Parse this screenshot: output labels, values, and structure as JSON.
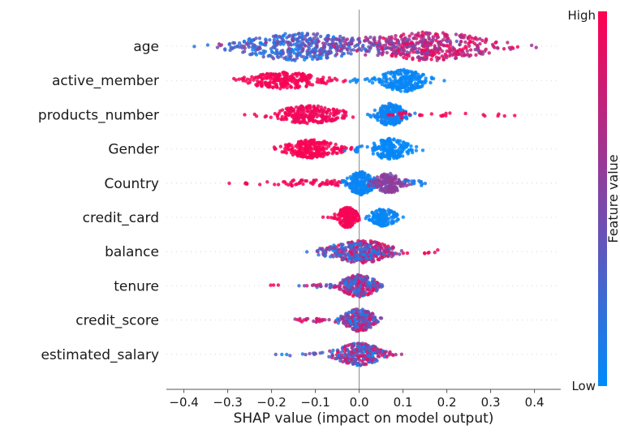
{
  "chart_data": {
    "type": "scatter",
    "variant": "shap-beeswarm-summary",
    "title": "",
    "xlabel": "SHAP value (impact on model output)",
    "xlim": [
      -0.44,
      0.46
    ],
    "xticks": [
      {
        "value": -0.4,
        "label": "−0.4"
      },
      {
        "value": -0.3,
        "label": "−0.3"
      },
      {
        "value": -0.2,
        "label": "−0.2"
      },
      {
        "value": -0.1,
        "label": "−0.1"
      },
      {
        "value": 0.0,
        "label": "0.0"
      },
      {
        "value": 0.1,
        "label": "0.1"
      },
      {
        "value": 0.2,
        "label": "0.2"
      },
      {
        "value": 0.3,
        "label": "0.3"
      },
      {
        "value": 0.4,
        "label": "0.4"
      }
    ],
    "features": [
      "age",
      "active_member",
      "products_number",
      "Gender",
      "Country",
      "credit_card",
      "balance",
      "tenure",
      "credit_score",
      "estimated_salary"
    ],
    "zero_line": {
      "x": 0,
      "color": "#999999"
    },
    "gridline_color": "#cccccc",
    "axis_color": "#555555",
    "colorbar": {
      "label": "Feature value",
      "high_label": "High",
      "low_label": "Low",
      "high_color": "#ff0051",
      "low_color": "#008bfb"
    },
    "clusters": {
      "age": [
        {
          "t": "violin",
          "x": -0.135,
          "sd": 0.08,
          "n": 340,
          "h": 17,
          "v": [
            0.02,
            0.45
          ]
        },
        {
          "t": "violin",
          "x": 0.16,
          "sd": 0.08,
          "n": 340,
          "h": 17,
          "v": [
            0.58,
            1.0
          ]
        },
        {
          "t": "violin",
          "x": 0.01,
          "sd": 0.14,
          "n": 150,
          "h": 11,
          "v": [
            0.35,
            0.72
          ]
        },
        {
          "t": "strip",
          "x": 0.355,
          "sd": 0.008,
          "n": 2,
          "h": 2,
          "v": [
            0.9,
            1.0
          ]
        },
        {
          "t": "strip",
          "x": -0.375,
          "sd": 0.004,
          "n": 1,
          "h": 1,
          "v": [
            0.05,
            0.15
          ]
        }
      ],
      "active_member": [
        {
          "t": "violin",
          "x": -0.17,
          "sd": 0.047,
          "n": 240,
          "h": 9.5,
          "v": [
            0.93,
            1.0
          ]
        },
        {
          "t": "violin",
          "x": 0.1,
          "sd": 0.029,
          "n": 240,
          "h": 13,
          "v": [
            0.0,
            0.06
          ]
        },
        {
          "t": "strip",
          "x": -0.012,
          "sd": 0.008,
          "n": 6,
          "h": 3,
          "v": [
            0.0,
            0.08
          ]
        }
      ],
      "products_number": [
        {
          "t": "violin",
          "x": -0.115,
          "sd": 0.043,
          "n": 250,
          "h": 10.5,
          "v": [
            0.88,
            1.0
          ]
        },
        {
          "t": "violin",
          "x": 0.072,
          "sd": 0.019,
          "n": 210,
          "h": 13,
          "v": [
            0.0,
            0.1
          ]
        },
        {
          "t": "strip",
          "x": 0.17,
          "sd": 0.055,
          "n": 18,
          "h": 2.5,
          "v": [
            0.95,
            1.0
          ]
        },
        {
          "t": "strip",
          "x": 0.33,
          "sd": 0.025,
          "n": 4,
          "h": 2,
          "v": [
            0.95,
            1.0
          ]
        },
        {
          "t": "strip",
          "x": 0.095,
          "sd": 0.006,
          "n": 8,
          "h": 5,
          "v": [
            0.85,
            1.0
          ]
        }
      ],
      "Gender": [
        {
          "t": "violin",
          "x": -0.108,
          "sd": 0.034,
          "n": 230,
          "h": 10.5,
          "v": [
            0.95,
            1.0
          ]
        },
        {
          "t": "violin",
          "x": 0.07,
          "sd": 0.025,
          "n": 210,
          "h": 12,
          "v": [
            0.0,
            0.05
          ]
        },
        {
          "t": "strip",
          "x": -0.008,
          "sd": 0.01,
          "n": 6,
          "h": 4,
          "v": [
            0.0,
            0.3
          ]
        }
      ],
      "Country": [
        {
          "t": "violin",
          "x": -0.11,
          "sd": 0.06,
          "n": 70,
          "h": 3.2,
          "v": [
            0.9,
            1.0
          ]
        },
        {
          "t": "violin",
          "x": 0.004,
          "sd": 0.017,
          "n": 210,
          "h": 14,
          "v": [
            0.0,
            0.08
          ]
        },
        {
          "t": "violin",
          "x": 0.068,
          "sd": 0.019,
          "n": 170,
          "h": 11.5,
          "v": [
            0.45,
            0.62
          ]
        },
        {
          "t": "strip",
          "x": 0.125,
          "sd": 0.02,
          "n": 14,
          "h": 3,
          "v": [
            0.0,
            0.15
          ]
        }
      ],
      "credit_card": [
        {
          "t": "violin",
          "x": -0.027,
          "sd": 0.013,
          "n": 170,
          "h": 12,
          "v": [
            0.93,
            1.0
          ]
        },
        {
          "t": "violin",
          "x": 0.055,
          "sd": 0.017,
          "n": 160,
          "h": 10,
          "v": [
            0.0,
            0.07
          ]
        },
        {
          "t": "strip",
          "x": -0.062,
          "sd": 0.008,
          "n": 5,
          "h": 2,
          "v": [
            0.95,
            1.0
          ]
        }
      ],
      "balance": [
        {
          "t": "violin",
          "x": 0.005,
          "sd": 0.038,
          "n": 290,
          "h": 13.5,
          "v": [
            0.45,
            1.0
          ]
        },
        {
          "t": "violin",
          "x": -0.012,
          "sd": 0.042,
          "n": 100,
          "h": 10,
          "v": [
            0.0,
            0.45
          ]
        },
        {
          "t": "strip",
          "x": 0.16,
          "sd": 0.018,
          "n": 6,
          "h": 2.5,
          "v": [
            0.88,
            1.0
          ]
        }
      ],
      "tenure": [
        {
          "t": "violin",
          "x": 0.0,
          "sd": 0.023,
          "n": 250,
          "h": 13,
          "v": [
            0.0,
            1.0
          ]
        },
        {
          "t": "strip",
          "x": -0.085,
          "sd": 0.028,
          "n": 18,
          "h": 2.5,
          "v": [
            0.1,
            1.0
          ]
        },
        {
          "t": "strip",
          "x": -0.19,
          "sd": 0.01,
          "n": 3,
          "h": 1.5,
          "v": [
            0.92,
            1.0
          ]
        }
      ],
      "credit_score": [
        {
          "t": "violin",
          "x": 0.0,
          "sd": 0.021,
          "n": 250,
          "h": 13,
          "v": [
            0.0,
            1.0
          ]
        },
        {
          "t": "strip",
          "x": -0.088,
          "sd": 0.03,
          "n": 24,
          "h": 2.5,
          "v": [
            0.5,
            1.0
          ]
        }
      ],
      "estimated_salary": [
        {
          "t": "violin",
          "x": 0.0,
          "sd": 0.03,
          "n": 260,
          "h": 13,
          "v": [
            0.0,
            1.0
          ]
        },
        {
          "t": "strip",
          "x": -0.115,
          "sd": 0.03,
          "n": 14,
          "h": 2.5,
          "v": [
            0.0,
            1.0
          ]
        },
        {
          "t": "strip",
          "x": 0.075,
          "sd": 0.012,
          "n": 6,
          "h": 3,
          "v": [
            0.6,
            1.0
          ]
        }
      ]
    }
  }
}
